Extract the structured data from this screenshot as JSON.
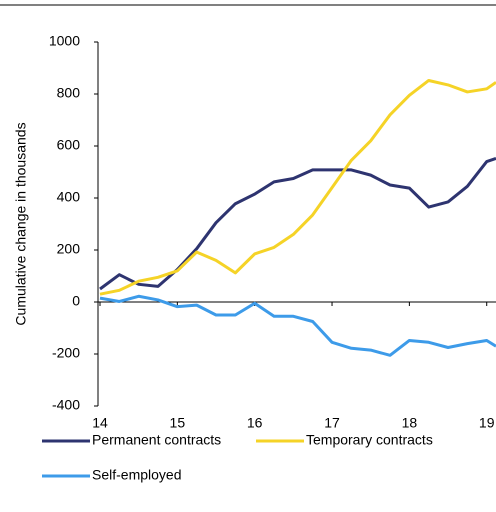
{
  "chart_data": {
    "type": "line",
    "ylabel": "Cumulative change in thousands",
    "x": [
      14,
      14.25,
      14.5,
      14.75,
      15,
      15.25,
      15.5,
      15.75,
      16,
      16.25,
      16.5,
      16.75,
      17,
      17.25,
      17.5,
      17.75,
      18,
      18.25,
      18.5,
      18.75,
      19,
      19.12
    ],
    "series": [
      {
        "name": "Permanent contracts",
        "color": "#2e3470",
        "values": [
          50,
          105,
          68,
          60,
          125,
          205,
          305,
          378,
          415,
          462,
          475,
          508,
          508,
          508,
          488,
          450,
          438,
          365,
          385,
          445,
          540,
          552
        ]
      },
      {
        "name": "Temporary contracts",
        "color": "#f5d327",
        "values": [
          30,
          45,
          80,
          95,
          120,
          192,
          160,
          112,
          185,
          210,
          260,
          335,
          440,
          545,
          620,
          720,
          795,
          852,
          835,
          808,
          820,
          845
        ]
      },
      {
        "name": "Self-employed",
        "color": "#3d9be9",
        "values": [
          15,
          2,
          22,
          8,
          -18,
          -12,
          -50,
          -50,
          -5,
          -55,
          -55,
          -75,
          -155,
          -178,
          -185,
          -205,
          -148,
          -155,
          -175,
          -160,
          -148,
          -170
        ]
      }
    ],
    "xlim": [
      14,
      19.12
    ],
    "xticks": [
      14,
      15,
      16,
      17,
      18,
      19
    ],
    "ylim": [
      -400,
      1000
    ],
    "yticks": [
      -400,
      -200,
      0,
      200,
      400,
      600,
      800,
      1000
    ],
    "grid": false,
    "legend": "bottom"
  }
}
